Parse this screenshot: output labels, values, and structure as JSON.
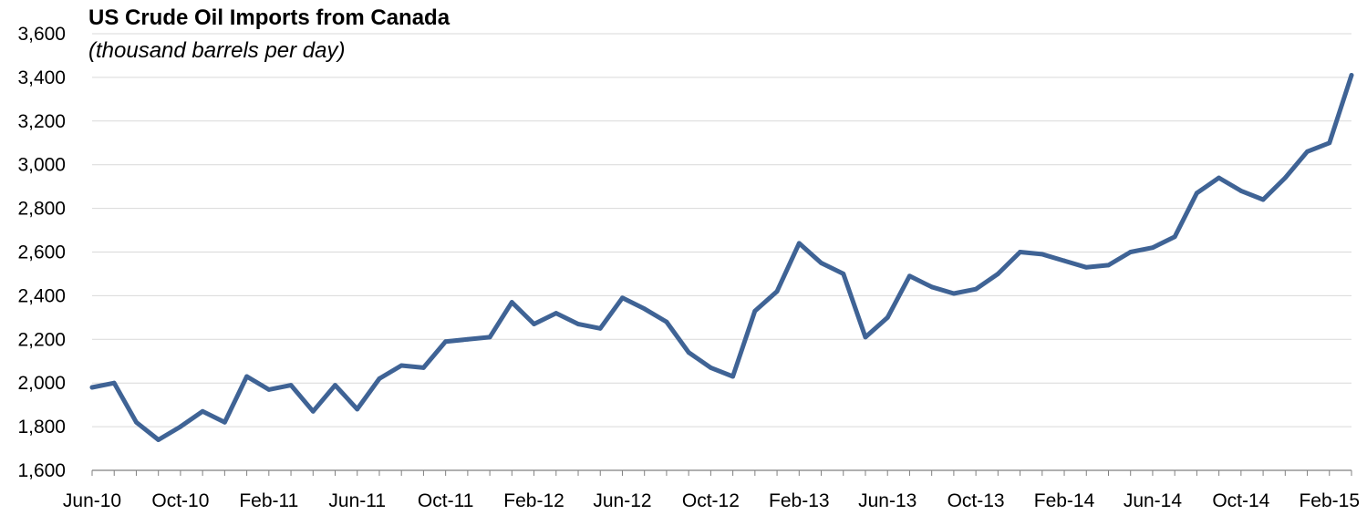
{
  "chart_data": {
    "type": "line",
    "title": "US Crude Oil Imports from Canada",
    "subtitle": "(thousand barrels per day)",
    "xlabel": "",
    "ylabel": "",
    "ylim": [
      1600,
      3600
    ],
    "yticks": [
      "1,600",
      "1,800",
      "2,000",
      "2,200",
      "2,400",
      "2,600",
      "2,800",
      "3,000",
      "3,200",
      "3,400",
      "3,600"
    ],
    "ytick_values": [
      1600,
      1800,
      2000,
      2200,
      2400,
      2600,
      2800,
      3000,
      3200,
      3400,
      3600
    ],
    "xtick_labels": [
      "Jun-10",
      "Oct-10",
      "Feb-11",
      "Jun-11",
      "Oct-11",
      "Feb-12",
      "Jun-12",
      "Oct-12",
      "Feb-13",
      "Jun-13",
      "Oct-13",
      "Feb-14",
      "Jun-14",
      "Oct-14",
      "Feb-15"
    ],
    "grid": true,
    "line_color": "#3f6395",
    "series": [
      {
        "values": [
          1980,
          2000,
          1820,
          1740,
          1800,
          1870,
          1820,
          2030,
          1970,
          1990,
          1870,
          1990,
          1880,
          2020,
          2080,
          2070,
          2190,
          2200,
          2210,
          2370,
          2270,
          2320,
          2270,
          2250,
          2390,
          2340,
          2280,
          2140,
          2070,
          2030,
          2330,
          2420,
          2640,
          2550,
          2500,
          2210,
          2300,
          2490,
          2440,
          2410,
          2430,
          2500,
          2600,
          2590,
          2560,
          2530,
          2540,
          2600,
          2620,
          2670,
          2870,
          2940,
          2880,
          2840,
          2940,
          3060,
          3100,
          3410
        ]
      }
    ]
  }
}
